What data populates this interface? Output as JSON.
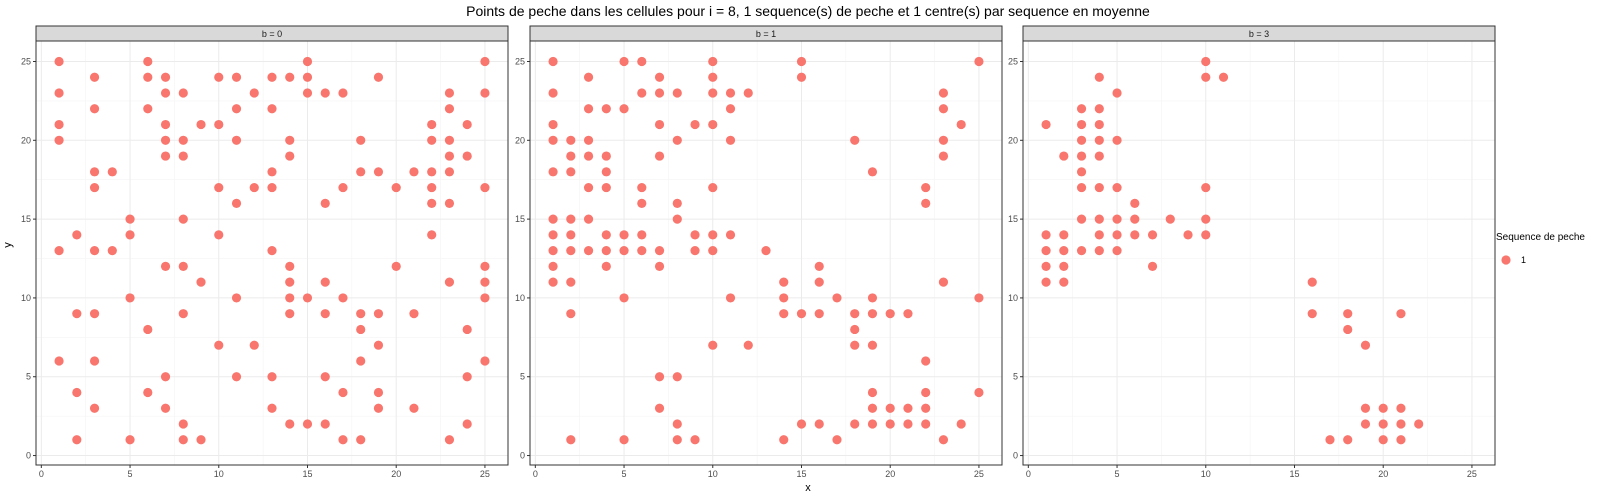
{
  "chart_data": {
    "type": "scatter",
    "title": "Points de peche dans les cellules pour i = 8, 1 sequence(s) de peche et 1 centre(s) par sequence en moyenne",
    "xlabel": "x",
    "ylabel": "y",
    "xlim": [
      -0.3,
      26.3
    ],
    "ylim": [
      -0.6,
      26.3
    ],
    "x_ticks": [
      0,
      5,
      10,
      15,
      20,
      25
    ],
    "y_ticks": [
      0,
      5,
      10,
      15,
      20,
      25
    ],
    "grid": true,
    "point_color": "#F8766D",
    "legend": {
      "title": "Sequence de peche",
      "position": "right",
      "entries": [
        "1"
      ]
    },
    "facets": [
      {
        "label": "b = 0",
        "points": [
          [
            1,
            25
          ],
          [
            1,
            23
          ],
          [
            1,
            21
          ],
          [
            1,
            20
          ],
          [
            1,
            13
          ],
          [
            1,
            6
          ],
          [
            2,
            14
          ],
          [
            2,
            9
          ],
          [
            2,
            4
          ],
          [
            2,
            1
          ],
          [
            3,
            24
          ],
          [
            3,
            22
          ],
          [
            3,
            18
          ],
          [
            3,
            17
          ],
          [
            3,
            13
          ],
          [
            3,
            9
          ],
          [
            3,
            6
          ],
          [
            3,
            3
          ],
          [
            4,
            18
          ],
          [
            4,
            13
          ],
          [
            5,
            15
          ],
          [
            5,
            14
          ],
          [
            5,
            10
          ],
          [
            5,
            1
          ],
          [
            6,
            25
          ],
          [
            6,
            24
          ],
          [
            6,
            22
          ],
          [
            6,
            8
          ],
          [
            6,
            4
          ],
          [
            7,
            24
          ],
          [
            7,
            23
          ],
          [
            7,
            21
          ],
          [
            7,
            20
          ],
          [
            7,
            19
          ],
          [
            7,
            12
          ],
          [
            7,
            5
          ],
          [
            7,
            3
          ],
          [
            8,
            23
          ],
          [
            8,
            20
          ],
          [
            8,
            19
          ],
          [
            8,
            15
          ],
          [
            8,
            12
          ],
          [
            8,
            9
          ],
          [
            8,
            2
          ],
          [
            8,
            1
          ],
          [
            9,
            21
          ],
          [
            9,
            11
          ],
          [
            9,
            1
          ],
          [
            10,
            24
          ],
          [
            10,
            21
          ],
          [
            10,
            17
          ],
          [
            10,
            14
          ],
          [
            10,
            7
          ],
          [
            11,
            24
          ],
          [
            11,
            22
          ],
          [
            11,
            20
          ],
          [
            11,
            16
          ],
          [
            11,
            10
          ],
          [
            11,
            5
          ],
          [
            12,
            23
          ],
          [
            12,
            17
          ],
          [
            12,
            7
          ],
          [
            13,
            24
          ],
          [
            13,
            22
          ],
          [
            13,
            18
          ],
          [
            13,
            17
          ],
          [
            13,
            13
          ],
          [
            13,
            5
          ],
          [
            13,
            3
          ],
          [
            14,
            24
          ],
          [
            14,
            20
          ],
          [
            14,
            19
          ],
          [
            14,
            12
          ],
          [
            14,
            11
          ],
          [
            14,
            10
          ],
          [
            14,
            9
          ],
          [
            14,
            2
          ],
          [
            15,
            25
          ],
          [
            15,
            24
          ],
          [
            15,
            23
          ],
          [
            15,
            10
          ],
          [
            15,
            2
          ],
          [
            16,
            23
          ],
          [
            16,
            16
          ],
          [
            16,
            11
          ],
          [
            16,
            9
          ],
          [
            16,
            5
          ],
          [
            16,
            2
          ],
          [
            17,
            23
          ],
          [
            17,
            17
          ],
          [
            17,
            10
          ],
          [
            17,
            4
          ],
          [
            17,
            1
          ],
          [
            18,
            20
          ],
          [
            18,
            18
          ],
          [
            18,
            9
          ],
          [
            18,
            8
          ],
          [
            18,
            6
          ],
          [
            18,
            1
          ],
          [
            19,
            24
          ],
          [
            19,
            18
          ],
          [
            19,
            9
          ],
          [
            19,
            7
          ],
          [
            19,
            4
          ],
          [
            19,
            3
          ],
          [
            20,
            17
          ],
          [
            20,
            12
          ],
          [
            21,
            18
          ],
          [
            21,
            9
          ],
          [
            21,
            3
          ],
          [
            22,
            21
          ],
          [
            22,
            20
          ],
          [
            22,
            18
          ],
          [
            22,
            17
          ],
          [
            22,
            16
          ],
          [
            22,
            14
          ],
          [
            23,
            23
          ],
          [
            23,
            22
          ],
          [
            23,
            20
          ],
          [
            23,
            19
          ],
          [
            23,
            18
          ],
          [
            23,
            16
          ],
          [
            23,
            11
          ],
          [
            23,
            1
          ],
          [
            24,
            21
          ],
          [
            24,
            19
          ],
          [
            24,
            8
          ],
          [
            24,
            5
          ],
          [
            24,
            2
          ],
          [
            25,
            25
          ],
          [
            25,
            23
          ],
          [
            25,
            17
          ],
          [
            25,
            12
          ],
          [
            25,
            11
          ],
          [
            25,
            10
          ],
          [
            25,
            6
          ]
        ]
      },
      {
        "label": "b = 1",
        "points": [
          [
            1,
            25
          ],
          [
            1,
            23
          ],
          [
            1,
            21
          ],
          [
            1,
            20
          ],
          [
            1,
            18
          ],
          [
            1,
            15
          ],
          [
            1,
            14
          ],
          [
            1,
            13
          ],
          [
            1,
            12
          ],
          [
            1,
            11
          ],
          [
            2,
            20
          ],
          [
            2,
            19
          ],
          [
            2,
            18
          ],
          [
            2,
            15
          ],
          [
            2,
            14
          ],
          [
            2,
            13
          ],
          [
            2,
            11
          ],
          [
            2,
            9
          ],
          [
            2,
            1
          ],
          [
            3,
            24
          ],
          [
            3,
            22
          ],
          [
            3,
            20
          ],
          [
            3,
            19
          ],
          [
            3,
            17
          ],
          [
            3,
            15
          ],
          [
            3,
            13
          ],
          [
            4,
            22
          ],
          [
            4,
            19
          ],
          [
            4,
            18
          ],
          [
            4,
            17
          ],
          [
            4,
            14
          ],
          [
            4,
            13
          ],
          [
            4,
            12
          ],
          [
            5,
            25
          ],
          [
            5,
            22
          ],
          [
            5,
            14
          ],
          [
            5,
            13
          ],
          [
            5,
            10
          ],
          [
            5,
            1
          ],
          [
            6,
            25
          ],
          [
            6,
            23
          ],
          [
            6,
            17
          ],
          [
            6,
            16
          ],
          [
            6,
            14
          ],
          [
            6,
            13
          ],
          [
            7,
            24
          ],
          [
            7,
            23
          ],
          [
            7,
            21
          ],
          [
            7,
            19
          ],
          [
            7,
            13
          ],
          [
            7,
            12
          ],
          [
            7,
            5
          ],
          [
            7,
            3
          ],
          [
            8,
            23
          ],
          [
            8,
            20
          ],
          [
            8,
            16
          ],
          [
            8,
            15
          ],
          [
            8,
            5
          ],
          [
            8,
            2
          ],
          [
            8,
            1
          ],
          [
            9,
            21
          ],
          [
            9,
            14
          ],
          [
            9,
            13
          ],
          [
            9,
            1
          ],
          [
            10,
            25
          ],
          [
            10,
            24
          ],
          [
            10,
            23
          ],
          [
            10,
            21
          ],
          [
            10,
            17
          ],
          [
            10,
            14
          ],
          [
            10,
            13
          ],
          [
            10,
            7
          ],
          [
            11,
            23
          ],
          [
            11,
            22
          ],
          [
            11,
            20
          ],
          [
            11,
            14
          ],
          [
            11,
            10
          ],
          [
            12,
            23
          ],
          [
            12,
            7
          ],
          [
            13,
            13
          ],
          [
            14,
            11
          ],
          [
            14,
            10
          ],
          [
            14,
            9
          ],
          [
            14,
            1
          ],
          [
            15,
            25
          ],
          [
            15,
            24
          ],
          [
            15,
            9
          ],
          [
            15,
            2
          ],
          [
            16,
            12
          ],
          [
            16,
            11
          ],
          [
            16,
            9
          ],
          [
            16,
            2
          ],
          [
            17,
            10
          ],
          [
            17,
            1
          ],
          [
            18,
            20
          ],
          [
            18,
            9
          ],
          [
            18,
            8
          ],
          [
            18,
            7
          ],
          [
            18,
            2
          ],
          [
            19,
            18
          ],
          [
            19,
            10
          ],
          [
            19,
            9
          ],
          [
            19,
            7
          ],
          [
            19,
            4
          ],
          [
            19,
            3
          ],
          [
            19,
            2
          ],
          [
            20,
            9
          ],
          [
            20,
            3
          ],
          [
            20,
            2
          ],
          [
            21,
            9
          ],
          [
            21,
            3
          ],
          [
            21,
            2
          ],
          [
            22,
            17
          ],
          [
            22,
            16
          ],
          [
            22,
            6
          ],
          [
            22,
            4
          ],
          [
            22,
            3
          ],
          [
            22,
            2
          ],
          [
            23,
            23
          ],
          [
            23,
            22
          ],
          [
            23,
            20
          ],
          [
            23,
            19
          ],
          [
            23,
            11
          ],
          [
            23,
            1
          ],
          [
            24,
            21
          ],
          [
            24,
            2
          ],
          [
            25,
            25
          ],
          [
            25,
            10
          ],
          [
            25,
            4
          ]
        ]
      },
      {
        "label": "b = 3",
        "points": [
          [
            1,
            21
          ],
          [
            1,
            14
          ],
          [
            1,
            13
          ],
          [
            1,
            12
          ],
          [
            1,
            11
          ],
          [
            2,
            19
          ],
          [
            2,
            14
          ],
          [
            2,
            13
          ],
          [
            2,
            12
          ],
          [
            2,
            11
          ],
          [
            3,
            22
          ],
          [
            3,
            21
          ],
          [
            3,
            20
          ],
          [
            3,
            19
          ],
          [
            3,
            18
          ],
          [
            3,
            17
          ],
          [
            3,
            15
          ],
          [
            3,
            13
          ],
          [
            4,
            24
          ],
          [
            4,
            22
          ],
          [
            4,
            21
          ],
          [
            4,
            20
          ],
          [
            4,
            19
          ],
          [
            4,
            17
          ],
          [
            4,
            15
          ],
          [
            4,
            14
          ],
          [
            4,
            13
          ],
          [
            5,
            23
          ],
          [
            5,
            20
          ],
          [
            5,
            17
          ],
          [
            5,
            15
          ],
          [
            5,
            14
          ],
          [
            5,
            13
          ],
          [
            6,
            16
          ],
          [
            6,
            15
          ],
          [
            6,
            14
          ],
          [
            7,
            14
          ],
          [
            7,
            12
          ],
          [
            8,
            15
          ],
          [
            9,
            14
          ],
          [
            10,
            25
          ],
          [
            10,
            24
          ],
          [
            10,
            17
          ],
          [
            10,
            15
          ],
          [
            10,
            14
          ],
          [
            11,
            24
          ],
          [
            16,
            11
          ],
          [
            16,
            9
          ],
          [
            17,
            1
          ],
          [
            18,
            9
          ],
          [
            18,
            8
          ],
          [
            18,
            1
          ],
          [
            19,
            7
          ],
          [
            19,
            3
          ],
          [
            19,
            2
          ],
          [
            20,
            3
          ],
          [
            20,
            2
          ],
          [
            20,
            1
          ],
          [
            21,
            9
          ],
          [
            21,
            3
          ],
          [
            21,
            2
          ],
          [
            21,
            1
          ],
          [
            22,
            2
          ]
        ]
      }
    ]
  }
}
